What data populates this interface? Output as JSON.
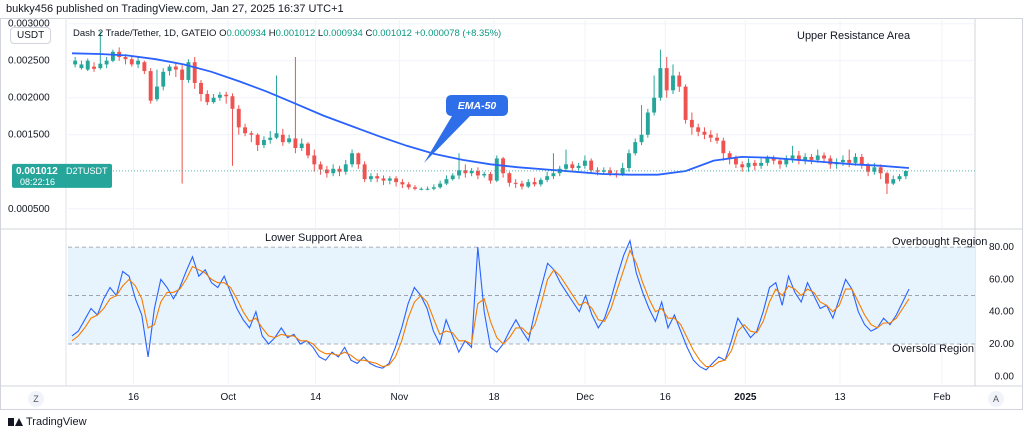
{
  "header": {
    "published_by": "bukky456 published on TradingView.com, Jan 27, 2025 16:37 UTC+1"
  },
  "symbol": {
    "currency_pill": "USDT",
    "name": "Dash 2 Trade/Tether, 1D, GATEIO",
    "ohlc_o_label": "O",
    "ohlc_o": "0.000934",
    "ohlc_h_label": "H",
    "ohlc_h": "0.001012",
    "ohlc_l_label": "L",
    "ohlc_l": "0.000934",
    "ohlc_c_label": "C",
    "ohlc_c": "0.001012",
    "change": "+0.000078 (+8.35%)"
  },
  "footer": {
    "brand": "TradingView"
  },
  "buttons": {
    "z": "Z",
    "a": "A"
  },
  "colors": {
    "up": "#26a69a",
    "down": "#ef5350",
    "ema": "#2962ff",
    "rsi": "#2962ff",
    "signal": "#f57c00",
    "band_fill": "#e3f2fd",
    "callout": "#2e6ee8"
  },
  "chart_data": [
    {
      "type": "candlestick",
      "title": "Dash 2 Trade/Tether, 1D, GATEIO",
      "x_tick_labels": [
        "16",
        "Oct",
        "14",
        "Nov",
        "18",
        "Dec",
        "16",
        "2025",
        "13",
        "Feb"
      ],
      "y_tick_labels": [
        "0.003000",
        "0.002500",
        "0.002000",
        "0.001500",
        "0.000500"
      ],
      "y_ticks": [
        0.003,
        0.0025,
        0.002,
        0.0015,
        0.0005
      ],
      "ylim": [
        0.00024,
        0.00305
      ],
      "grid": true,
      "last_price_label": "0.001012",
      "last_price_symbol": "D2TUSDT",
      "countdown": "08:22:16",
      "last_price": 0.001012,
      "annotations": {
        "upper_resistance": "Upper Resistance Area",
        "ema_label": "EMA-50"
      },
      "ema50": [
        0.0026,
        0.00259,
        0.00257,
        0.00252,
        0.00245,
        0.00235,
        0.00222,
        0.00208,
        0.00192,
        0.00176,
        0.00162,
        0.00148,
        0.00135,
        0.00124,
        0.00116,
        0.0011,
        0.00106,
        0.00103,
        0.001,
        0.00097,
        0.00096,
        0.00096,
        0.00101,
        0.00115,
        0.0012,
        0.00119,
        0.00116,
        0.00113,
        0.0011,
        0.00108,
        0.00105
      ],
      "candles": [
        [
          0.00245,
          0.0025,
          0.00241,
          0.00255
        ],
        [
          0.0024,
          0.00245,
          0.00238,
          0.0025
        ],
        [
          0.00238,
          0.0025,
          0.00236,
          0.00253
        ],
        [
          0.00242,
          0.00239,
          0.00235,
          0.00248
        ],
        [
          0.0024,
          0.00246,
          0.00238,
          0.0029
        ],
        [
          0.00245,
          0.0025,
          0.0024,
          0.00255
        ],
        [
          0.0025,
          0.00262,
          0.00248,
          0.00265
        ],
        [
          0.00262,
          0.00255,
          0.0025,
          0.00268
        ],
        [
          0.00255,
          0.00252,
          0.00245,
          0.00259
        ],
        [
          0.00252,
          0.00245,
          0.00242,
          0.00256
        ],
        [
          0.00245,
          0.0025,
          0.0024,
          0.00256
        ],
        [
          0.00248,
          0.00236,
          0.00232,
          0.0025
        ],
        [
          0.00236,
          0.00196,
          0.00192,
          0.0024
        ],
        [
          0.00198,
          0.00215,
          0.00195,
          0.00238
        ],
        [
          0.00215,
          0.00235,
          0.0021,
          0.0024
        ],
        [
          0.00236,
          0.00242,
          0.0023,
          0.00245
        ],
        [
          0.00242,
          0.00238,
          0.00228,
          0.00248
        ],
        [
          0.00238,
          0.00224,
          0.00084,
          0.00244
        ],
        [
          0.00224,
          0.00248,
          0.0022,
          0.00252
        ],
        [
          0.00248,
          0.0022,
          0.00212,
          0.00255
        ],
        [
          0.0022,
          0.00205,
          0.00195,
          0.00224
        ],
        [
          0.00205,
          0.00194,
          0.0019,
          0.0021
        ],
        [
          0.00194,
          0.002,
          0.00192,
          0.00205
        ],
        [
          0.002,
          0.00204,
          0.00196,
          0.00208
        ],
        [
          0.00204,
          0.00202,
          0.00192,
          0.00208
        ],
        [
          0.00202,
          0.00185,
          0.00108,
          0.00206
        ],
        [
          0.00185,
          0.0016,
          0.0015,
          0.0019
        ],
        [
          0.0016,
          0.00152,
          0.00148,
          0.00165
        ],
        [
          0.00152,
          0.0015,
          0.0014,
          0.00155
        ],
        [
          0.0015,
          0.00136,
          0.00128,
          0.00152
        ],
        [
          0.00136,
          0.00143,
          0.00132,
          0.00148
        ],
        [
          0.00143,
          0.00146,
          0.00138,
          0.00155
        ],
        [
          0.00146,
          0.00152,
          0.00144,
          0.0023
        ],
        [
          0.0015,
          0.0014,
          0.00135,
          0.00158
        ],
        [
          0.0014,
          0.00145,
          0.00138,
          0.0015
        ],
        [
          0.00145,
          0.00132,
          0.00125,
          0.00255
        ],
        [
          0.00132,
          0.00138,
          0.00128,
          0.00145
        ],
        [
          0.00138,
          0.00122,
          0.00118,
          0.0014
        ],
        [
          0.00122,
          0.0011,
          0.001,
          0.0013
        ],
        [
          0.0011,
          0.00103,
          0.00096,
          0.00114
        ],
        [
          0.00103,
          0.00098,
          0.00092,
          0.00108
        ],
        [
          0.00098,
          0.00104,
          0.00094,
          0.0011
        ],
        [
          0.00104,
          0.001,
          0.00094,
          0.00108
        ],
        [
          0.001,
          0.0011,
          0.00096,
          0.00116
        ],
        [
          0.0011,
          0.00125,
          0.00106,
          0.0013
        ],
        [
          0.00125,
          0.0011,
          0.00104,
          0.00126
        ],
        [
          0.0011,
          0.0009,
          0.00086,
          0.00114
        ],
        [
          0.0009,
          0.00094,
          0.00086,
          0.00098
        ],
        [
          0.00094,
          0.00091,
          0.00086,
          0.00098
        ],
        [
          0.00091,
          0.00088,
          0.00082,
          0.00095
        ],
        [
          0.00088,
          0.00091,
          0.00083,
          0.00094
        ],
        [
          0.00091,
          0.00086,
          0.0008,
          0.00094
        ],
        [
          0.00086,
          0.00083,
          0.00078,
          0.0009
        ],
        [
          0.00083,
          0.00079,
          0.00076,
          0.00086
        ],
        [
          0.00079,
          0.00077,
          0.00075,
          0.00082
        ],
        [
          0.00077,
          0.00077,
          0.00075,
          0.00079
        ],
        [
          0.00077,
          0.00077,
          0.00075,
          0.0008
        ],
        [
          0.00077,
          0.00079,
          0.00075,
          0.00083
        ],
        [
          0.00079,
          0.00084,
          0.00077,
          0.00088
        ],
        [
          0.00084,
          0.0009,
          0.00082,
          0.00095
        ],
        [
          0.0009,
          0.00095,
          0.00088,
          0.00098
        ],
        [
          0.00095,
          0.00102,
          0.0009,
          0.00125
        ],
        [
          0.00102,
          0.00098,
          0.00092,
          0.0011
        ],
        [
          0.00098,
          0.00101,
          0.00094,
          0.00105
        ],
        [
          0.00101,
          0.00095,
          0.0009,
          0.00106
        ],
        [
          0.00095,
          0.00097,
          0.00092,
          0.001
        ],
        [
          0.00097,
          0.00088,
          0.00084,
          0.001
        ],
        [
          0.00088,
          0.00118,
          0.00086,
          0.00122
        ],
        [
          0.00118,
          0.00098,
          0.00092,
          0.0012
        ],
        [
          0.00098,
          0.00085,
          0.0008,
          0.001
        ],
        [
          0.00085,
          0.00084,
          0.00078,
          0.0009
        ],
        [
          0.00084,
          0.0008,
          0.00076,
          0.00088
        ],
        [
          0.0008,
          0.00086,
          0.00078,
          0.0009
        ],
        [
          0.00086,
          0.00083,
          0.0008,
          0.00092
        ],
        [
          0.00083,
          0.00089,
          0.0008,
          0.00092
        ],
        [
          0.00089,
          0.00094,
          0.00086,
          0.001
        ],
        [
          0.00094,
          0.00098,
          0.0009,
          0.00125
        ],
        [
          0.00098,
          0.00104,
          0.00094,
          0.00108
        ],
        [
          0.00104,
          0.0011,
          0.001,
          0.0013
        ],
        [
          0.0011,
          0.00105,
          0.001,
          0.00114
        ],
        [
          0.00105,
          0.00108,
          0.00102,
          0.00112
        ],
        [
          0.00108,
          0.00115,
          0.00104,
          0.00122
        ],
        [
          0.00115,
          0.00102,
          0.00098,
          0.00118
        ],
        [
          0.00102,
          0.001,
          0.00095,
          0.00106
        ],
        [
          0.001,
          0.00102,
          0.00097,
          0.00106
        ],
        [
          0.00102,
          0.00098,
          0.00094,
          0.00106
        ],
        [
          0.00098,
          0.00096,
          0.00092,
          0.00102
        ],
        [
          0.00096,
          0.00105,
          0.00094,
          0.00112
        ],
        [
          0.00105,
          0.00125,
          0.001,
          0.0013
        ],
        [
          0.00125,
          0.0014,
          0.00122,
          0.00145
        ],
        [
          0.0014,
          0.0015,
          0.00136,
          0.0019
        ],
        [
          0.0015,
          0.0018,
          0.00146,
          0.00185
        ],
        [
          0.0018,
          0.002,
          0.00176,
          0.0023
        ],
        [
          0.002,
          0.0024,
          0.00196,
          0.00265
        ],
        [
          0.0024,
          0.0021,
          0.002,
          0.00255
        ],
        [
          0.0021,
          0.0023,
          0.00205,
          0.00245
        ],
        [
          0.0023,
          0.00215,
          0.00208,
          0.00235
        ],
        [
          0.00215,
          0.0017,
          0.00165,
          0.00218
        ],
        [
          0.0017,
          0.0016,
          0.0015,
          0.0018
        ],
        [
          0.0016,
          0.00154,
          0.00148,
          0.00165
        ],
        [
          0.00154,
          0.0015,
          0.00144,
          0.0016
        ],
        [
          0.0015,
          0.00146,
          0.0014,
          0.00156
        ],
        [
          0.00146,
          0.00142,
          0.00138,
          0.00152
        ],
        [
          0.00142,
          0.00125,
          0.00115,
          0.00146
        ],
        [
          0.00125,
          0.00118,
          0.0011,
          0.00128
        ],
        [
          0.00118,
          0.0011,
          0.00105,
          0.00122
        ],
        [
          0.0011,
          0.00106,
          0.001,
          0.00114
        ],
        [
          0.00106,
          0.00112,
          0.001,
          0.00118
        ],
        [
          0.00112,
          0.00108,
          0.00102,
          0.00116
        ],
        [
          0.00108,
          0.00112,
          0.00104,
          0.00118
        ],
        [
          0.00112,
          0.00118,
          0.00108,
          0.00122
        ],
        [
          0.00118,
          0.00115,
          0.0011,
          0.00122
        ],
        [
          0.00115,
          0.0011,
          0.00104,
          0.00118
        ],
        [
          0.0011,
          0.00118,
          0.00106,
          0.00122
        ],
        [
          0.00118,
          0.00122,
          0.00112,
          0.00135
        ],
        [
          0.00122,
          0.00115,
          0.0011,
          0.00128
        ],
        [
          0.00115,
          0.0012,
          0.0011,
          0.00125
        ],
        [
          0.0012,
          0.00116,
          0.0011,
          0.00124
        ],
        [
          0.00116,
          0.00122,
          0.00112,
          0.0013
        ],
        [
          0.00122,
          0.00118,
          0.00112,
          0.00126
        ],
        [
          0.00118,
          0.0011,
          0.00104,
          0.00122
        ],
        [
          0.0011,
          0.00113,
          0.00104,
          0.00118
        ],
        [
          0.00113,
          0.00116,
          0.00108,
          0.00122
        ],
        [
          0.00116,
          0.00112,
          0.00106,
          0.0013
        ],
        [
          0.00112,
          0.0012,
          0.00108,
          0.00125
        ],
        [
          0.0012,
          0.0011,
          0.00104,
          0.00124
        ],
        [
          0.0011,
          0.001,
          0.00094,
          0.00112
        ],
        [
          0.001,
          0.00106,
          0.00096,
          0.00112
        ],
        [
          0.00106,
          0.00098,
          0.0009,
          0.0011
        ],
        [
          0.00098,
          0.00084,
          0.0007,
          0.001
        ],
        [
          0.00084,
          0.0009,
          0.00082,
          0.00095
        ],
        [
          0.0009,
          0.00094,
          0.00087,
          0.00097
        ],
        [
          0.00094,
          0.00101,
          0.0009,
          0.00102
        ]
      ]
    },
    {
      "type": "line",
      "title": "",
      "y_tick_labels": [
        "80.00",
        "60.00",
        "40.00",
        "20.00",
        "0.00"
      ],
      "y_ticks": [
        80,
        60,
        40,
        20,
        0
      ],
      "ylim": [
        -6,
        90
      ],
      "band": [
        20,
        80
      ],
      "annotations": {
        "lower_support": "Lower Support Area",
        "overbought": "Overbought Region",
        "oversold": "Oversold Region"
      },
      "series": [
        {
          "values": [
            25,
            28,
            35,
            42,
            38,
            48,
            55,
            50,
            65,
            62,
            48,
            38,
            12,
            42,
            60,
            55,
            48,
            55,
            65,
            74,
            62,
            66,
            58,
            55,
            62,
            52,
            42,
            35,
            30,
            40,
            25,
            20,
            24,
            30,
            24,
            26,
            20,
            22,
            18,
            12,
            10,
            15,
            12,
            18,
            10,
            8,
            12,
            8,
            6,
            5,
            8,
            18,
            30,
            45,
            55,
            50,
            42,
            28,
            20,
            35,
            25,
            15,
            22,
            18,
            80,
            40,
            18,
            15,
            20,
            28,
            35,
            28,
            22,
            40,
            55,
            70,
            66,
            58,
            52,
            46,
            40,
            50,
            38,
            30,
            36,
            48,
            62,
            75,
            84,
            64,
            52,
            42,
            34,
            46,
            30,
            38,
            28,
            18,
            10,
            6,
            4,
            8,
            12,
            10,
            22,
            36,
            30,
            24,
            28,
            40,
            55,
            58,
            44,
            62,
            52,
            46,
            58,
            50,
            42,
            44,
            36,
            48,
            60,
            54,
            40,
            32,
            28,
            30,
            36,
            32,
            38,
            46,
            54
          ],
          "color": "#2962ff"
        },
        {
          "values": [
            22,
            25,
            30,
            36,
            38,
            42,
            48,
            50,
            56,
            60,
            56,
            48,
            30,
            32,
            46,
            52,
            52,
            54,
            60,
            68,
            66,
            64,
            60,
            58,
            58,
            55,
            48,
            40,
            34,
            36,
            30,
            25,
            24,
            26,
            25,
            25,
            22,
            22,
            20,
            16,
            14,
            14,
            13,
            15,
            13,
            10,
            10,
            9,
            8,
            6,
            7,
            12,
            22,
            36,
            46,
            50,
            46,
            36,
            26,
            28,
            27,
            22,
            22,
            20,
            45,
            48,
            34,
            24,
            20,
            24,
            30,
            30,
            26,
            32,
            45,
            60,
            66,
            62,
            56,
            50,
            44,
            46,
            42,
            35,
            34,
            42,
            54,
            66,
            78,
            70,
            58,
            48,
            40,
            42,
            36,
            36,
            32,
            24,
            16,
            10,
            6,
            6,
            9,
            10,
            16,
            28,
            32,
            28,
            27,
            34,
            46,
            54,
            50,
            56,
            54,
            50,
            54,
            52,
            46,
            44,
            40,
            44,
            54,
            54,
            46,
            38,
            32,
            30,
            33,
            33,
            36,
            42,
            48
          ],
          "color": "#f57c00"
        }
      ]
    }
  ]
}
